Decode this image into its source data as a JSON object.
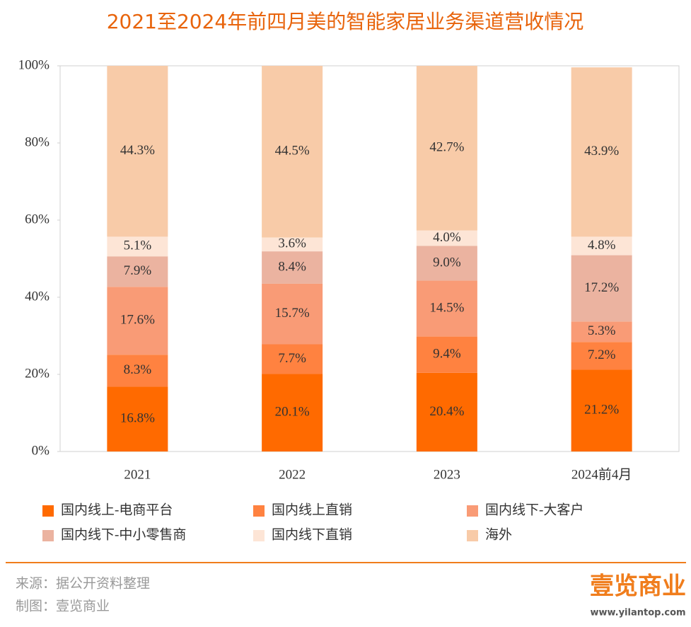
{
  "chart_data": {
    "type": "stacked_bar",
    "title": "2021至2024年前四月美的智能家居业务渠道营收情况",
    "categories": [
      "2021",
      "2022",
      "2023",
      "2024前4月"
    ],
    "series": [
      {
        "name": "国内线上-电商平台",
        "color": "#ff6a00",
        "values": [
          16.8,
          20.1,
          20.4,
          21.2
        ],
        "value_labels": [
          "16.8%",
          "20.1%",
          "20.4%",
          "21.2%"
        ]
      },
      {
        "name": "国内线上直销",
        "color": "#ff8240",
        "values": [
          8.3,
          7.7,
          9.4,
          7.2
        ],
        "value_labels": [
          "8.3%",
          "7.7%",
          "9.4%",
          "7.2%"
        ]
      },
      {
        "name": "国内线下-大客户",
        "color": "#f99b76",
        "values": [
          17.6,
          15.7,
          14.5,
          5.3
        ],
        "value_labels": [
          "17.6%",
          "15.7%",
          "14.5%",
          "5.3%"
        ]
      },
      {
        "name": "国内线下-中小零售商",
        "color": "#ebb3a0",
        "values": [
          7.9,
          8.4,
          9.0,
          17.2
        ],
        "value_labels": [
          "7.9%",
          "8.4%",
          "9.0%",
          "17.2%"
        ]
      },
      {
        "name": "国内线下直销",
        "color": "#fde5d6",
        "values": [
          5.1,
          3.6,
          4.0,
          4.8
        ],
        "value_labels": [
          "5.1%",
          "3.6%",
          "4.0%",
          "4.8%"
        ]
      },
      {
        "name": "海外",
        "color": "#f8cba8",
        "values": [
          44.3,
          44.5,
          42.7,
          43.9
        ],
        "value_labels": [
          "44.3%",
          "44.5%",
          "42.7%",
          "43.9%"
        ]
      }
    ],
    "ylim": [
      0,
      100
    ],
    "yticks": [
      {
        "value": 0,
        "label": "0%"
      },
      {
        "value": 20,
        "label": "20%"
      },
      {
        "value": 40,
        "label": "40%"
      },
      {
        "value": 60,
        "label": "60%"
      },
      {
        "value": 80,
        "label": "80%"
      },
      {
        "value": 100,
        "label": "100%"
      }
    ],
    "grid": false,
    "legend": "bottom"
  },
  "footer": {
    "source": "来源：据公开资料整理",
    "credit": "制图：壹览商业",
    "logo": "壹览商业",
    "logo_url": "www.yilantop.com"
  }
}
